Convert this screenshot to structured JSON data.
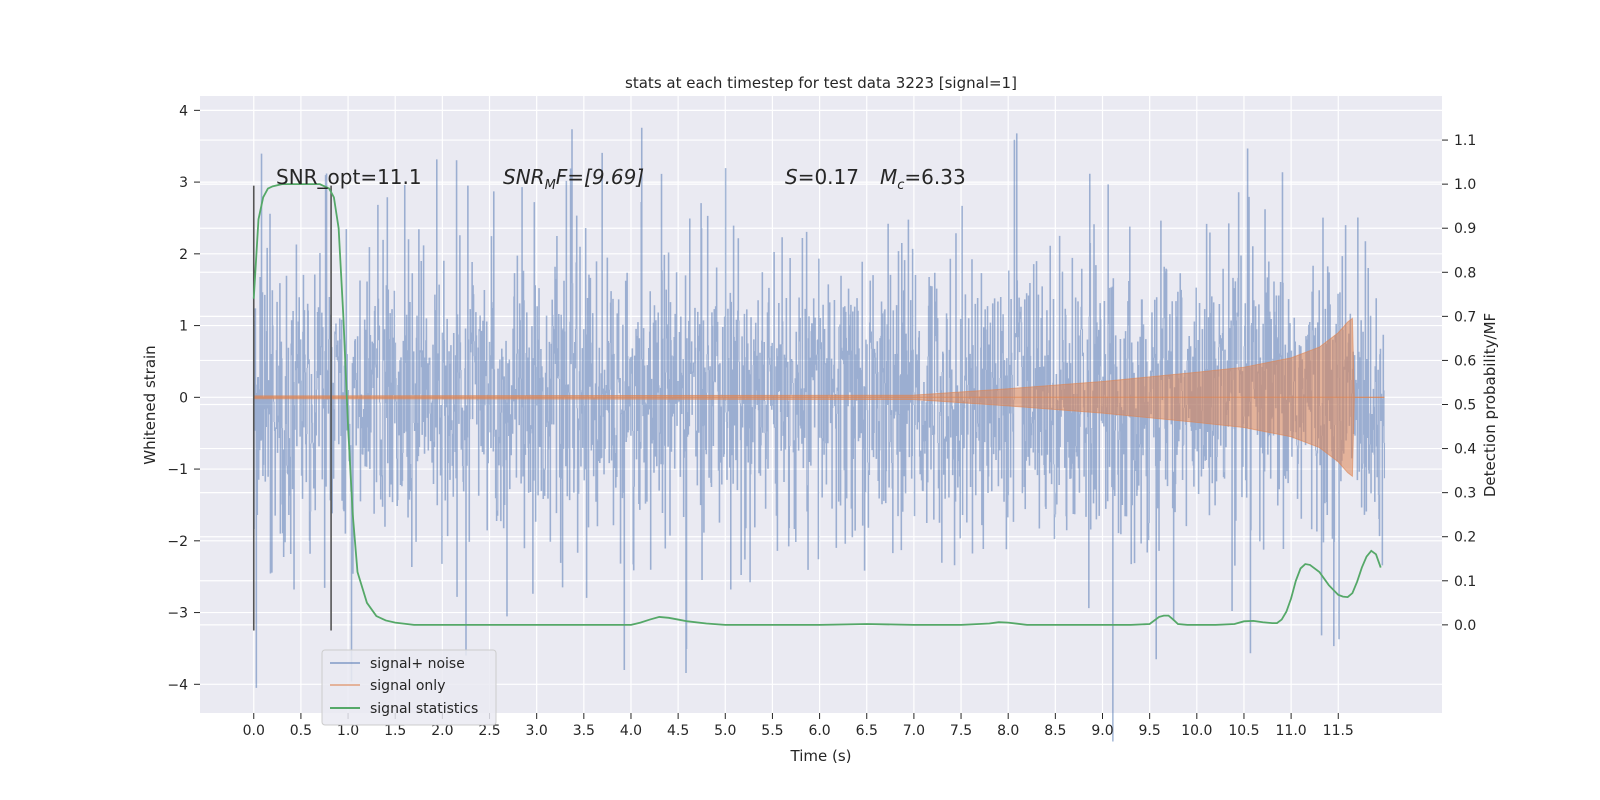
{
  "chart_data": {
    "type": "line",
    "title": "stats at each timestep for test data 3223 [signal=1]",
    "xlabel": "Time (s)",
    "ylabel": "Whitened strain",
    "y2label": "Detection probability/MF",
    "xlim": [
      -0.57,
      12.6
    ],
    "ylim": [
      -4.4,
      4.2
    ],
    "y2lim": [
      -0.2,
      1.2
    ],
    "x_ticks": [
      0.0,
      0.5,
      1.0,
      1.5,
      2.0,
      2.5,
      3.0,
      3.5,
      4.0,
      4.5,
      5.0,
      5.5,
      6.0,
      6.5,
      7.0,
      7.5,
      8.0,
      8.5,
      9.0,
      9.5,
      10.0,
      10.5,
      11.0,
      11.5
    ],
    "x_tick_labels": [
      "0.0",
      "0.5",
      "1.0",
      "1.5",
      "2.0",
      "2.5",
      "3.0",
      "3.5",
      "4.0",
      "4.5",
      "5.0",
      "5.5",
      "6.0",
      "6.5",
      "7.0",
      "7.5",
      "8.0",
      "8.5",
      "9.0",
      "9.5",
      "10.0",
      "10.5",
      "11.0",
      "11.5"
    ],
    "y_ticks": [
      -4,
      -3,
      -2,
      -1,
      0,
      1,
      2,
      3,
      4
    ],
    "y_tick_labels": [
      "−4",
      "−3",
      "−2",
      "−1",
      "0",
      "1",
      "2",
      "3",
      "4"
    ],
    "y2_ticks": [
      0.0,
      0.1,
      0.2,
      0.3,
      0.4,
      0.5,
      0.6,
      0.7,
      0.8,
      0.9,
      1.0,
      1.1
    ],
    "y2_tick_labels": [
      "0.0",
      "0.1",
      "0.2",
      "0.3",
      "0.4",
      "0.5",
      "0.6",
      "0.7",
      "0.8",
      "0.9",
      "1.0",
      "1.1"
    ],
    "grid": true,
    "legend_position": "lower-left",
    "vertical_lines": [
      0.0,
      0.82
    ],
    "annotations": {
      "snr_opt": "SNR_opt=11.1",
      "snr_mf_base": "SNR",
      "snr_mf_sub": "M",
      "snr_mf_rest": "F=[9.69]",
      "s_var": "S",
      "s_val": "=0.17",
      "mc_var": "M",
      "mc_sub": "c",
      "mc_val": "=6.33"
    },
    "series": [
      {
        "name": "signal+ noise",
        "color": "#4c72b0",
        "kind": "noise",
        "x_range": [
          0.0,
          11.99
        ],
        "typical_amplitude": 1.0,
        "extreme_min": -4.08,
        "extreme_max": 3.82
      },
      {
        "name": "signal only",
        "color": "#dd8452",
        "kind": "chirp",
        "envelope": {
          "x": [
            0.0,
            7.0,
            8.0,
            9.0,
            10.0,
            10.5,
            11.0,
            11.3,
            11.5,
            11.6,
            11.65,
            11.67,
            11.99
          ],
          "y": [
            0.02,
            0.03,
            0.12,
            0.22,
            0.35,
            0.42,
            0.55,
            0.7,
            0.9,
            1.05,
            1.1,
            0.0,
            0.0
          ]
        }
      },
      {
        "name": "signal statistics",
        "color": "#55a868",
        "kind": "line",
        "axis": "right",
        "x": [
          0.0,
          0.05,
          0.1,
          0.15,
          0.2,
          0.3,
          0.4,
          0.5,
          0.6,
          0.7,
          0.75,
          0.8,
          0.85,
          0.9,
          0.95,
          1.0,
          1.05,
          1.1,
          1.2,
          1.3,
          1.4,
          1.5,
          1.7,
          2.0,
          2.5,
          3.0,
          3.5,
          3.8,
          4.0,
          4.1,
          4.2,
          4.3,
          4.4,
          4.5,
          4.6,
          4.8,
          5.0,
          5.5,
          6.0,
          6.5,
          7.0,
          7.3,
          7.5,
          7.8,
          7.9,
          8.0,
          8.2,
          8.5,
          9.0,
          9.3,
          9.5,
          9.6,
          9.65,
          9.7,
          9.75,
          9.8,
          9.9,
          10.0,
          10.2,
          10.4,
          10.5,
          10.6,
          10.7,
          10.8,
          10.85,
          10.9,
          10.95,
          11.0,
          11.05,
          11.1,
          11.15,
          11.2,
          11.3,
          11.4,
          11.5,
          11.55,
          11.6,
          11.65,
          11.7,
          11.75,
          11.8,
          11.85,
          11.9,
          11.95
        ],
        "values": [
          0.74,
          0.92,
          0.97,
          0.99,
          0.995,
          1.0,
          1.0,
          1.0,
          1.0,
          1.0,
          0.995,
          0.99,
          0.97,
          0.9,
          0.7,
          0.45,
          0.25,
          0.12,
          0.05,
          0.02,
          0.01,
          0.005,
          0.0,
          0.0,
          0.0,
          0.0,
          0.0,
          0.0,
          0.0,
          0.005,
          0.012,
          0.018,
          0.016,
          0.012,
          0.008,
          0.003,
          0.0,
          0.0,
          0.0,
          0.002,
          0.0,
          0.0,
          0.0,
          0.003,
          0.006,
          0.005,
          0.0,
          0.0,
          0.0,
          0.0,
          0.002,
          0.018,
          0.021,
          0.021,
          0.012,
          0.002,
          0.0,
          0.0,
          0.0,
          0.002,
          0.008,
          0.009,
          0.006,
          0.004,
          0.004,
          0.012,
          0.03,
          0.06,
          0.1,
          0.128,
          0.138,
          0.136,
          0.12,
          0.09,
          0.068,
          0.064,
          0.063,
          0.072,
          0.098,
          0.13,
          0.155,
          0.168,
          0.16,
          0.13
        ]
      }
    ]
  }
}
